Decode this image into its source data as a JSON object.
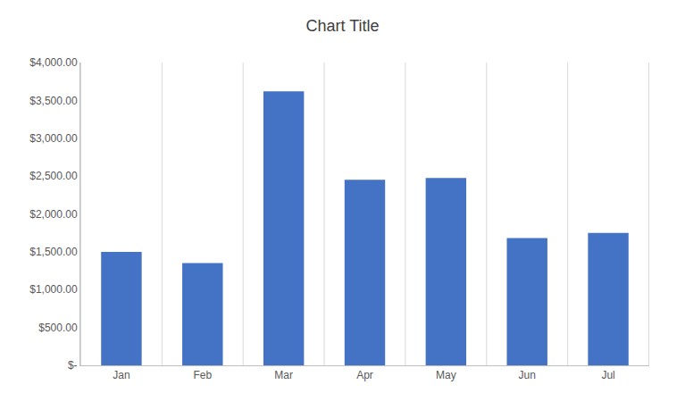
{
  "chart_data": {
    "type": "bar",
    "title": "Chart Title",
    "categories": [
      "Jan",
      "Feb",
      "Mar",
      "Apr",
      "May",
      "Jun",
      "Jul"
    ],
    "values": [
      1500,
      1350,
      3620,
      2450,
      2475,
      1680,
      1750
    ],
    "color": "#4472C4",
    "ylim": [
      0,
      4000
    ],
    "yticks": [
      {
        "value": 0,
        "label": "$-"
      },
      {
        "value": 500,
        "label": "$500.00"
      },
      {
        "value": 1000,
        "label": "$1,000.00"
      },
      {
        "value": 1500,
        "label": "$1,500.00"
      },
      {
        "value": 2000,
        "label": "$2,000.00"
      },
      {
        "value": 2500,
        "label": "$2,500.00"
      },
      {
        "value": 3000,
        "label": "$3,000.00"
      },
      {
        "value": 3500,
        "label": "$3,500.00"
      },
      {
        "value": 4000,
        "label": "$4,000.00"
      }
    ],
    "grid": true
  }
}
